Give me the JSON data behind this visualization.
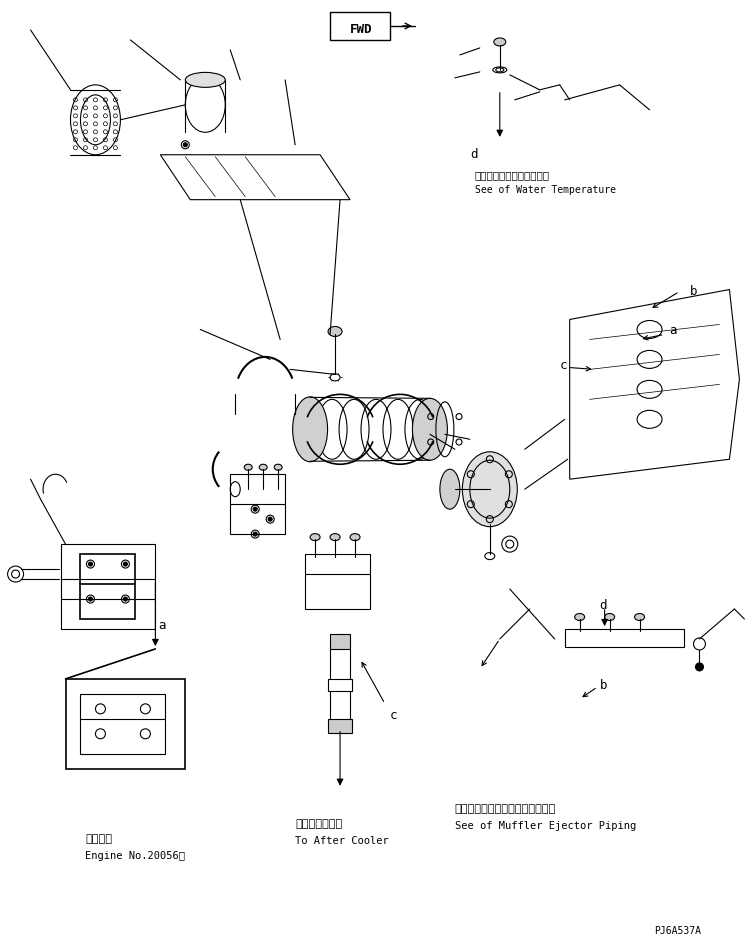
{
  "fig_width": 7.51,
  "fig_height": 9.39,
  "dpi": 100,
  "bg_color": "#ffffff",
  "line_color": "#000000",
  "text_color": "#000000",
  "font_family": "monospace",
  "labels": {
    "water_temp_jp": "ウォータテンバラチャ参照",
    "water_temp_en": "See of Water Temperature",
    "muffler_jp": "マフラエジェクタパイピング参照",
    "muffler_en": "See of Muffler Ejector Piping",
    "engine_jp": "適用号機",
    "engine_en": "Engine No.20056～",
    "after_cooler_jp": "アフタクーラヘ",
    "after_cooler_en": "To After Cooler",
    "part_num": "PJ6A537A",
    "fwd": "FWD",
    "label_a": "a",
    "label_b": "b",
    "label_c": "c",
    "label_d": "d"
  }
}
